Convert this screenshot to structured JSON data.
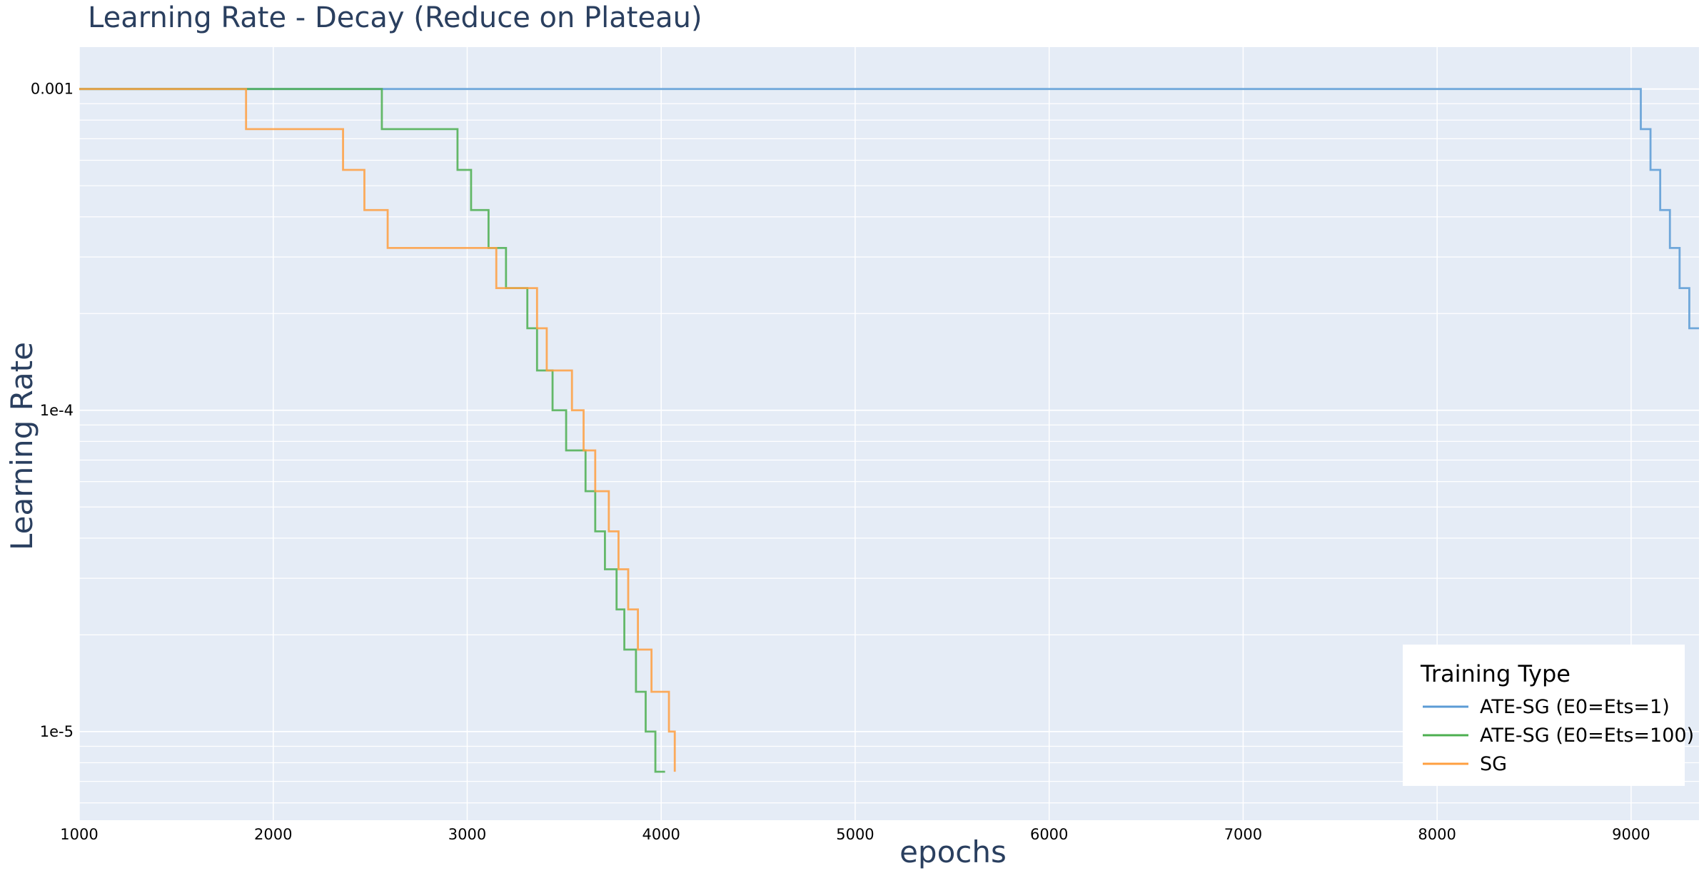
{
  "chart_data": {
    "type": "line",
    "line_shape": "step",
    "title": "Learning Rate - Decay (Reduce on Plateau)",
    "xlabel": "epochs",
    "ylabel": "Learning Rate",
    "x_range": [
      1000,
      9350
    ],
    "y_scale": "log",
    "y_range": [
      5.3e-06,
      0.00135
    ],
    "grid": true,
    "background_color": "#e5ecf6",
    "grid_color": "#ffffff",
    "x_ticks": [
      {
        "value": 1000,
        "label": "1000"
      },
      {
        "value": 2000,
        "label": "2000"
      },
      {
        "value": 3000,
        "label": "3000"
      },
      {
        "value": 4000,
        "label": "4000"
      },
      {
        "value": 5000,
        "label": "5000"
      },
      {
        "value": 6000,
        "label": "6000"
      },
      {
        "value": 7000,
        "label": "7000"
      },
      {
        "value": 8000,
        "label": "8000"
      },
      {
        "value": 9000,
        "label": "9000"
      }
    ],
    "y_ticks": [
      {
        "value": 0.001,
        "label": "0.001"
      },
      {
        "value": 0.0001,
        "label": "1e-4"
      },
      {
        "value": 1e-05,
        "label": "1e-5"
      }
    ],
    "legend": {
      "title": "Training Type",
      "position": "bottom-right"
    },
    "series": [
      {
        "name": "ATE-SG (E0=Ets=1)",
        "color": "#5b9bd5",
        "x": [
          1000,
          9050,
          9100,
          9150,
          9200,
          9250,
          9300,
          9350
        ],
        "y": [
          0.001,
          0.00075,
          0.00056,
          0.00042,
          0.00032,
          0.00024,
          0.00018,
          0.00018
        ]
      },
      {
        "name": "ATE-SG (E0=Ets=100)",
        "color": "#4caf50",
        "x": [
          1000,
          2560,
          2950,
          3020,
          3110,
          3200,
          3310,
          3360,
          3440,
          3510,
          3610,
          3660,
          3710,
          3770,
          3810,
          3870,
          3920,
          3970,
          4020
        ],
        "y": [
          0.001,
          0.00075,
          0.00056,
          0.00042,
          0.00032,
          0.00024,
          0.00018,
          0.000133,
          0.0001,
          7.5e-05,
          5.6e-05,
          4.2e-05,
          3.2e-05,
          2.4e-05,
          1.8e-05,
          1.33e-05,
          1e-05,
          7.5e-06,
          7.5e-06
        ]
      },
      {
        "name": "SG",
        "color": "#ff9f40",
        "x": [
          1000,
          1860,
          2360,
          2470,
          2590,
          3150,
          3360,
          3410,
          3540,
          3600,
          3660,
          3730,
          3780,
          3830,
          3880,
          3950,
          4040,
          4070
        ],
        "y": [
          0.001,
          0.00075,
          0.00056,
          0.00042,
          0.00032,
          0.00024,
          0.00018,
          0.000133,
          0.0001,
          7.5e-05,
          5.6e-05,
          4.2e-05,
          3.2e-05,
          2.4e-05,
          1.8e-05,
          1.33e-05,
          1e-05,
          7.5e-06
        ]
      }
    ]
  }
}
